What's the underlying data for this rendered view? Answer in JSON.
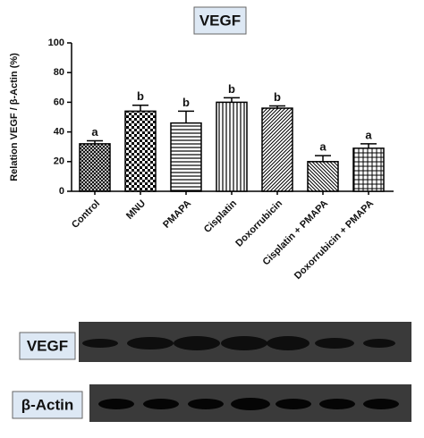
{
  "chart_data": {
    "type": "bar",
    "title": "VEGF",
    "ylabel": "Relation VEGF / β-Actin (%)",
    "categories": [
      "Control",
      "MNU",
      "PMAPA",
      "Cisplatin",
      "Doxorrubicin",
      "Cisplatin + PMAPA",
      "Doxorrubicin + PMAPA"
    ],
    "values": [
      32,
      54,
      46,
      60,
      56,
      20,
      29
    ],
    "errors": [
      2,
      4,
      8,
      3,
      1.5,
      4,
      3
    ],
    "annotations": [
      "a",
      "b",
      "b",
      "b",
      "b",
      "a",
      "a"
    ],
    "color": "#000000",
    "ylim": [
      0,
      100
    ],
    "yticks": [
      0,
      20,
      40,
      60,
      80,
      100
    ],
    "grid": false
  },
  "blots": [
    {
      "label": "VEGF"
    },
    {
      "label": "β-Actin"
    }
  ]
}
